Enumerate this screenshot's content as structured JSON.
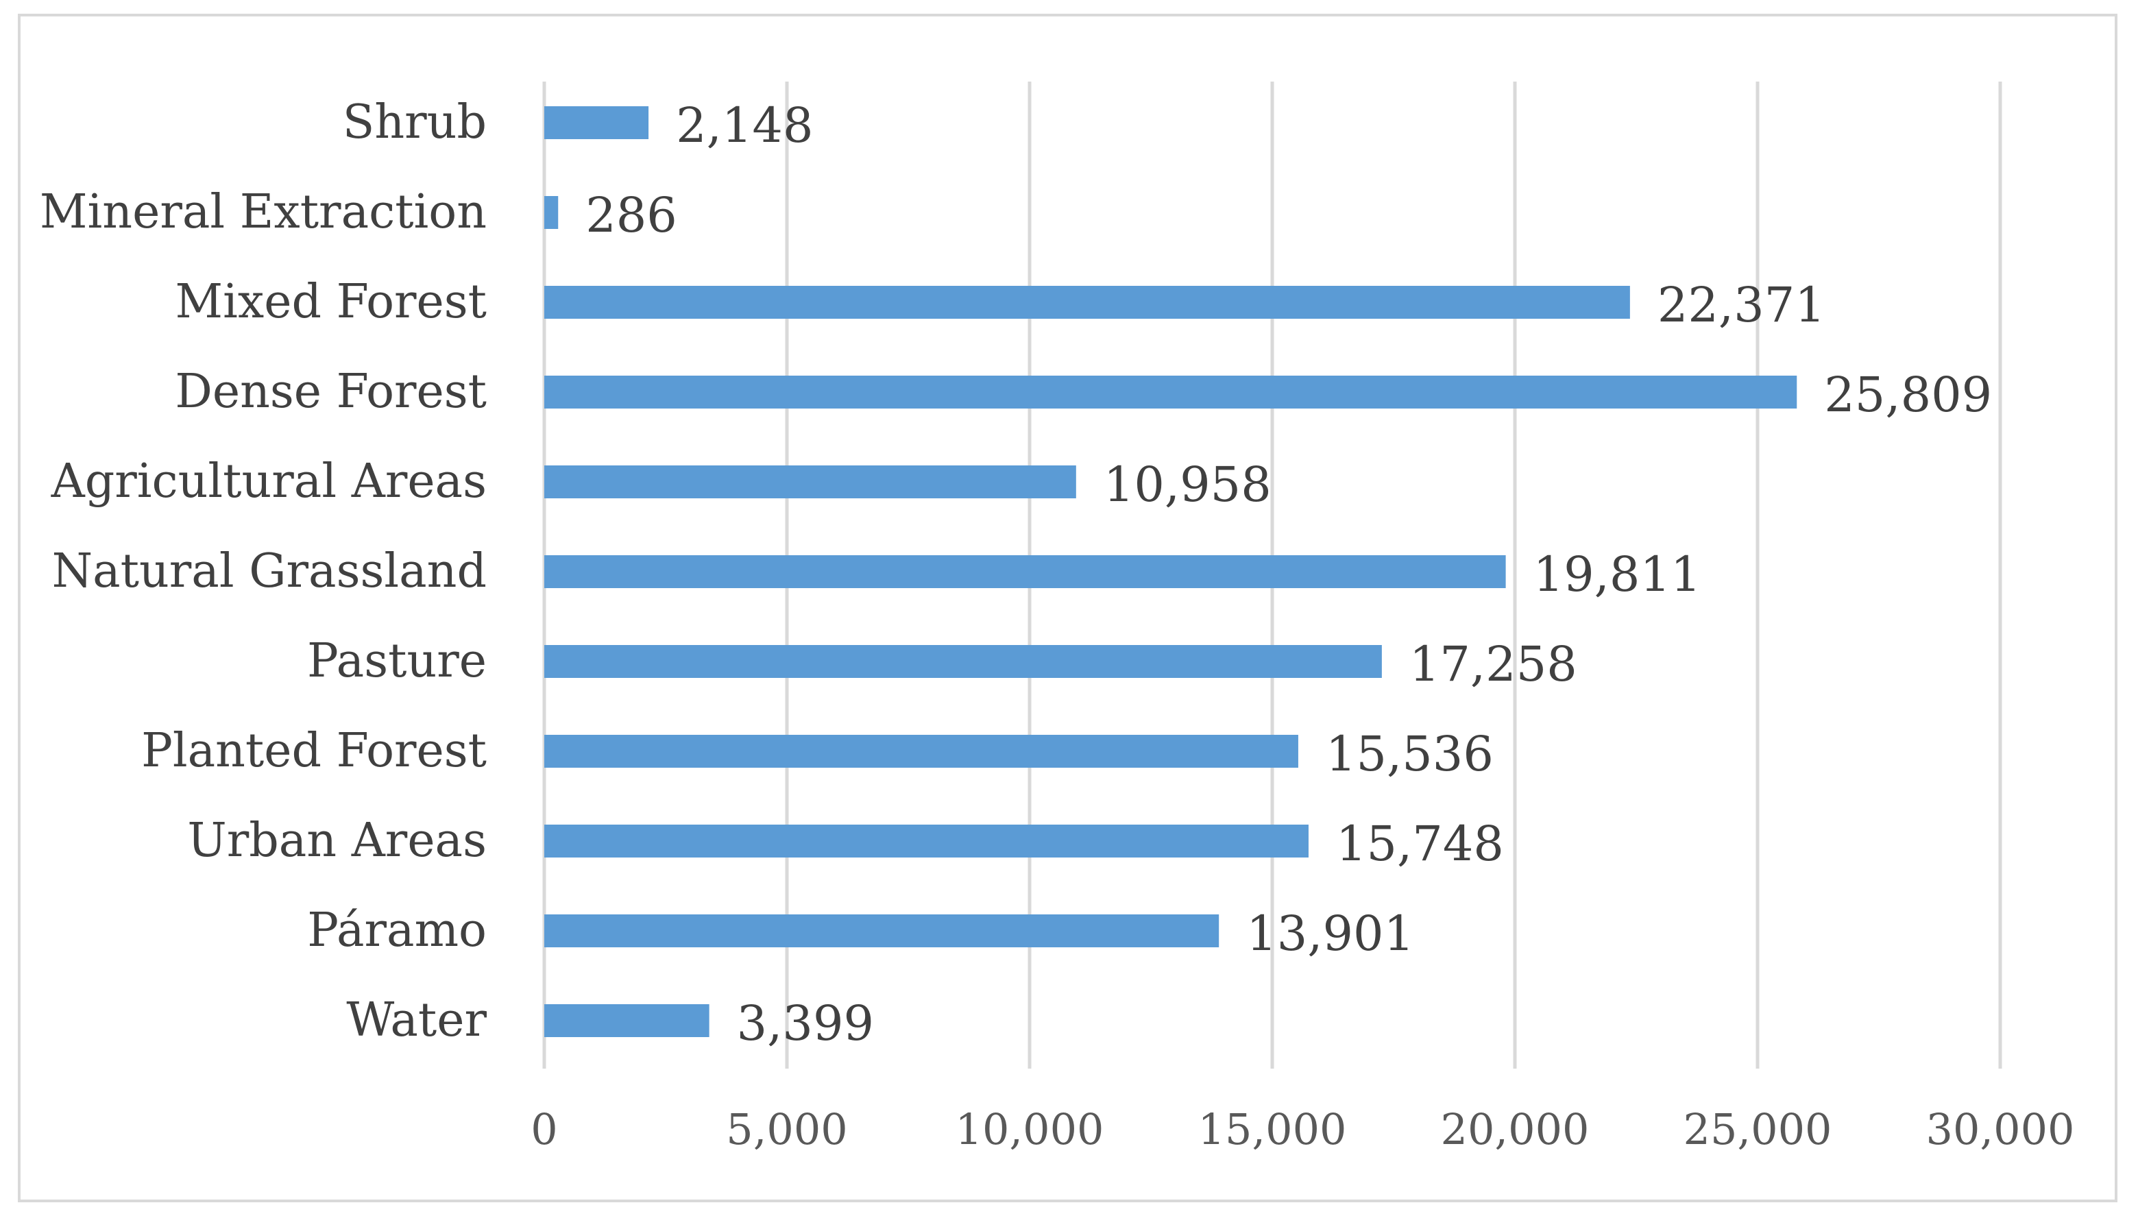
{
  "chart_data": {
    "type": "bar",
    "orientation": "horizontal",
    "categories": [
      "Shrub",
      "Mineral Extraction",
      "Mixed Forest",
      "Dense Forest",
      "Agricultural Areas",
      "Natural Grassland",
      "Pasture",
      "Planted Forest",
      "Urban Areas",
      "Páramo",
      "Water"
    ],
    "values": [
      2148,
      286,
      22371,
      25809,
      10958,
      19811,
      17258,
      15536,
      15748,
      13901,
      3399
    ],
    "value_labels": [
      "2,148",
      "286",
      "22,371",
      "25,809",
      "10,958",
      "19,811",
      "17,258",
      "15,536",
      "15,748",
      "13,901",
      "3,399"
    ],
    "xlim": [
      0,
      30000
    ],
    "xticks": [
      0,
      5000,
      10000,
      15000,
      20000,
      25000,
      30000
    ],
    "xtick_labels": [
      "0",
      "5,000",
      "10,000",
      "15,000",
      "20,000",
      "25,000",
      "30,000"
    ],
    "title": "",
    "xlabel": "",
    "ylabel": "",
    "grid": "vertical",
    "legend": "none",
    "bar_color": "#5b9bd5"
  }
}
